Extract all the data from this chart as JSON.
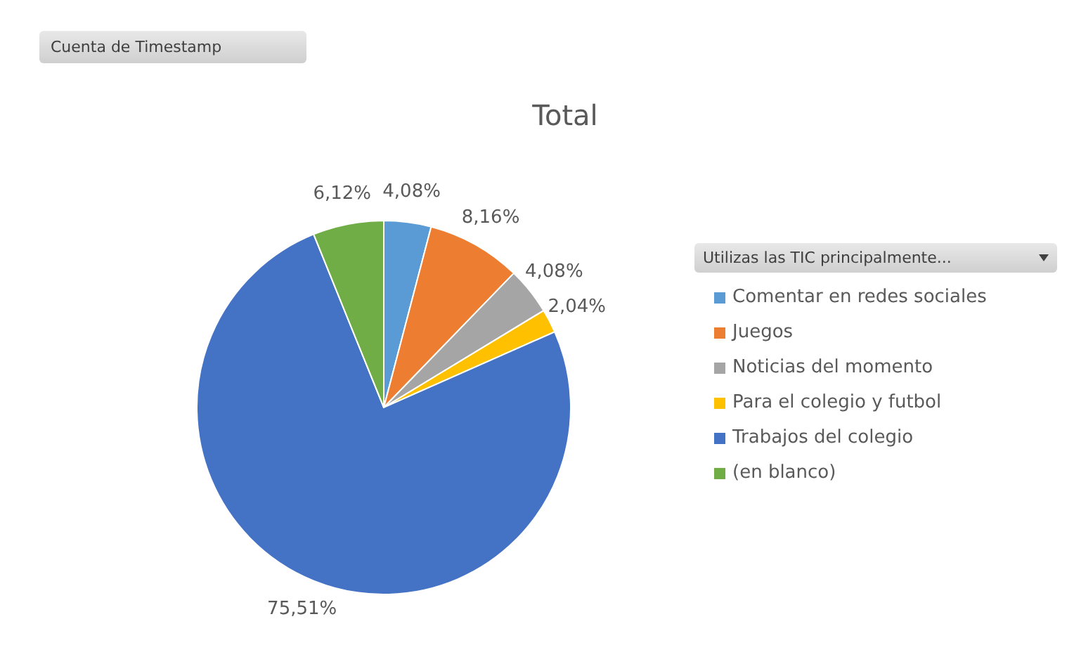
{
  "chart_data": {
    "type": "pie",
    "title": "Total",
    "legend_title": "Utilizas las TIC principalmente...",
    "annotations": [
      "Cuenta de Timestamp"
    ],
    "categories": [
      "Comentar en redes sociales",
      "Juegos",
      "Noticias del momento",
      "Para el colegio y futbol",
      "Trabajos del colegio",
      "(en blanco)"
    ],
    "values": [
      4.08,
      8.16,
      4.08,
      2.04,
      75.51,
      6.12
    ],
    "value_labels": [
      "4,08%",
      "8,16%",
      "4,08%",
      "2,04%",
      "75,51%",
      "6,12%"
    ],
    "colors": [
      "#5b9bd5",
      "#ed7d31",
      "#a5a5a5",
      "#ffc000",
      "#4472c4",
      "#70ad47"
    ],
    "legend": "right"
  }
}
